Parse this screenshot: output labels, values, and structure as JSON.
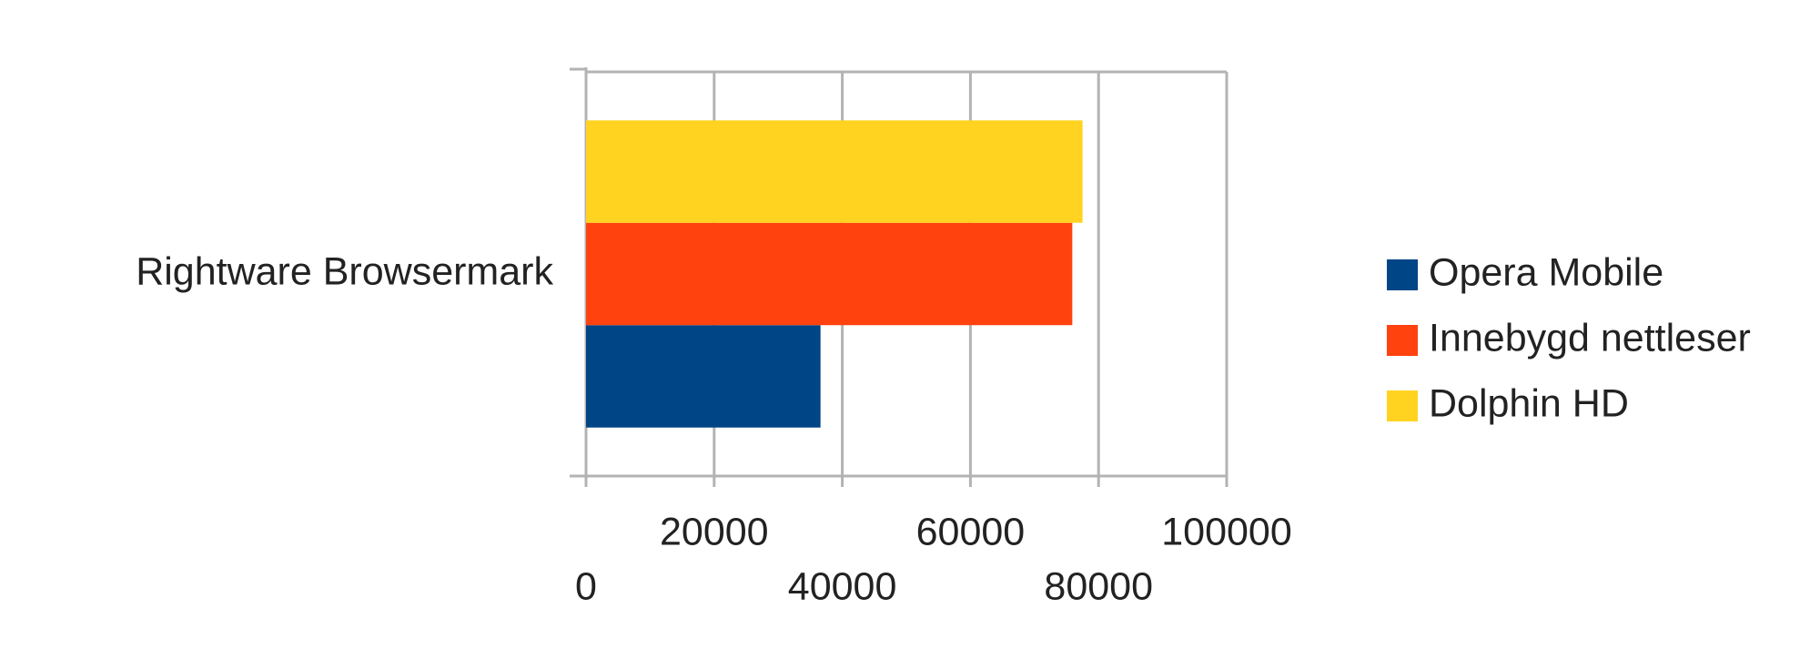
{
  "chart_data": {
    "type": "bar",
    "orientation": "horizontal",
    "categories": [
      "Rightware Browsermark"
    ],
    "series": [
      {
        "name": "Opera Mobile",
        "color": "#004586",
        "values": [
          36600
        ]
      },
      {
        "name": "Innebygd nettleser",
        "color": "#ff420e",
        "values": [
          75900
        ]
      },
      {
        "name": "Dolphin HD",
        "color": "#ffd320",
        "values": [
          77500
        ]
      }
    ],
    "xlim": [
      0,
      100000
    ],
    "xticks": [
      0,
      20000,
      40000,
      60000,
      80000,
      100000
    ],
    "grid": true,
    "legend": "right"
  }
}
